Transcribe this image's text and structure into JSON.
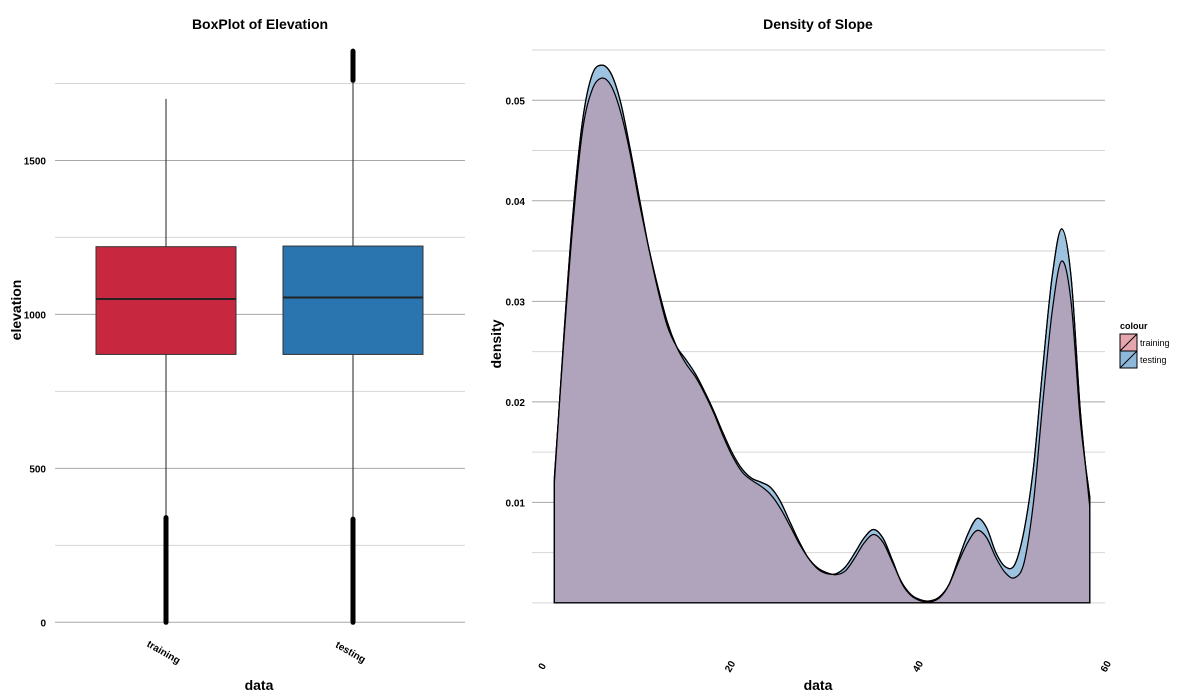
{
  "colors": {
    "training": "#C8283F",
    "testing": "#2A75B0",
    "training_fill": "#E6A6AE",
    "testing_fill": "#8DB8DA",
    "overlap_fill": "#B0A4BC",
    "grid_major": "#a8a8a8",
    "grid_minor": "#d6d6d6",
    "outline": "#000000"
  },
  "chart_data": [
    {
      "type": "boxplot",
      "title": "BoxPlot of Elevation",
      "xlabel": "data",
      "ylabel": "elevation",
      "categories": [
        "training",
        "testing"
      ],
      "ylim": [
        -25,
        1875
      ],
      "yticks": [
        0,
        500,
        1000,
        1500
      ],
      "ytick_labels": [
        "0",
        "500",
        "1000",
        "1500"
      ],
      "boxes": [
        {
          "name": "training",
          "min": 0,
          "q1": 870,
          "median": 1050,
          "q3": 1220,
          "whisker_low": 0,
          "whisker_high": 1700,
          "outliers_low": [
            0,
            340
          ],
          "outliers_high": []
        },
        {
          "name": "testing",
          "min": 0,
          "q1": 870,
          "median": 1055,
          "q3": 1222,
          "whisker_low": 0,
          "whisker_high": 1760,
          "outliers_low": [
            0,
            335
          ],
          "outliers_high": [
            1760,
            1855
          ]
        }
      ],
      "grid": true
    },
    {
      "type": "area",
      "title": "Density of Slope",
      "xlabel": "data",
      "ylabel": "density",
      "xlim": [
        0,
        61
      ],
      "ylim": [
        -0.0027,
        0.0555
      ],
      "xticks": [
        0,
        20,
        40,
        60
      ],
      "xtick_labels": [
        "0",
        "20",
        "40",
        "60"
      ],
      "yticks": [
        0.01,
        0.02,
        0.03,
        0.04,
        0.05
      ],
      "ytick_labels": [
        "0.01",
        "0.02",
        "0.03",
        "0.04",
        "0.05"
      ],
      "grid": true,
      "legend": {
        "title": "colour",
        "position": "right",
        "entries": [
          "training",
          "testing"
        ]
      },
      "series": [
        {
          "name": "training",
          "x": [
            1,
            2,
            3,
            4,
            5,
            6,
            7,
            8,
            9,
            10,
            11,
            12,
            13,
            14,
            15,
            16,
            17,
            18,
            19,
            20,
            21,
            22,
            23,
            24,
            25,
            26,
            27,
            28,
            29,
            30,
            31,
            32,
            33,
            34,
            35,
            36,
            37,
            38,
            39,
            40,
            41,
            42,
            43,
            44,
            45,
            46,
            47,
            48,
            49,
            50,
            51,
            52,
            53,
            54,
            55,
            56,
            57,
            58
          ],
          "y": [
            0.0125,
            0.026,
            0.038,
            0.047,
            0.051,
            0.0522,
            0.0515,
            0.049,
            0.045,
            0.04,
            0.0355,
            0.0315,
            0.028,
            0.0255,
            0.0238,
            0.0225,
            0.0208,
            0.0188,
            0.0165,
            0.0145,
            0.013,
            0.0122,
            0.0116,
            0.0108,
            0.0095,
            0.0078,
            0.006,
            0.0045,
            0.0035,
            0.003,
            0.0028,
            0.0032,
            0.0045,
            0.006,
            0.0068,
            0.006,
            0.004,
            0.002,
            0.0008,
            0.0003,
            0.0002,
            0.0006,
            0.0018,
            0.004,
            0.006,
            0.0072,
            0.0065,
            0.0045,
            0.003,
            0.0025,
            0.004,
            0.01,
            0.02,
            0.029,
            0.034,
            0.03,
            0.018,
            0.0105
          ]
        },
        {
          "name": "testing",
          "x": [
            1,
            2,
            3,
            4,
            5,
            6,
            7,
            8,
            9,
            10,
            11,
            12,
            13,
            14,
            15,
            16,
            17,
            18,
            19,
            20,
            21,
            22,
            23,
            24,
            25,
            26,
            27,
            28,
            29,
            30,
            31,
            32,
            33,
            34,
            35,
            36,
            37,
            38,
            39,
            40,
            41,
            42,
            43,
            44,
            45,
            46,
            47,
            48,
            49,
            50,
            51,
            52,
            53,
            54,
            55,
            56,
            57,
            58
          ],
          "y": [
            0.012,
            0.0265,
            0.039,
            0.048,
            0.0525,
            0.0535,
            0.0527,
            0.05,
            0.0455,
            0.0405,
            0.0355,
            0.0312,
            0.0276,
            0.0255,
            0.0242,
            0.0228,
            0.021,
            0.019,
            0.0168,
            0.0148,
            0.0133,
            0.0124,
            0.012,
            0.0115,
            0.0102,
            0.0082,
            0.0062,
            0.0045,
            0.0034,
            0.0029,
            0.0029,
            0.0036,
            0.005,
            0.0065,
            0.0073,
            0.0064,
            0.0042,
            0.0019,
            0.0007,
            0.0002,
            0.0001,
            0.0005,
            0.0018,
            0.0043,
            0.0068,
            0.0084,
            0.0075,
            0.005,
            0.0036,
            0.0038,
            0.0072,
            0.0135,
            0.0235,
            0.0325,
            0.0372,
            0.0325,
            0.019,
            0.0095
          ]
        }
      ]
    }
  ]
}
